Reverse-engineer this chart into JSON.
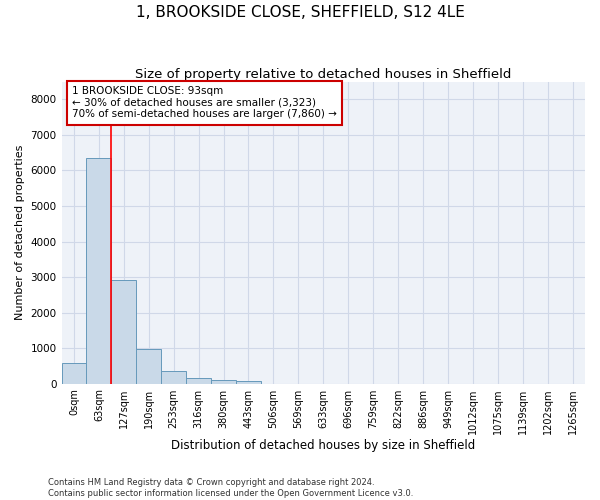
{
  "title": "1, BROOKSIDE CLOSE, SHEFFIELD, S12 4LE",
  "subtitle": "Size of property relative to detached houses in Sheffield",
  "xlabel": "Distribution of detached houses by size in Sheffield",
  "ylabel": "Number of detached properties",
  "categories": [
    "0sqm",
    "63sqm",
    "127sqm",
    "190sqm",
    "253sqm",
    "316sqm",
    "380sqm",
    "443sqm",
    "506sqm",
    "569sqm",
    "633sqm",
    "696sqm",
    "759sqm",
    "822sqm",
    "886sqm",
    "949sqm",
    "1012sqm",
    "1075sqm",
    "1139sqm",
    "1202sqm",
    "1265sqm"
  ],
  "bar_values": [
    580,
    6350,
    2920,
    970,
    360,
    160,
    100,
    65,
    0,
    0,
    0,
    0,
    0,
    0,
    0,
    0,
    0,
    0,
    0,
    0,
    0
  ],
  "bar_color": "#c9d9e8",
  "bar_edge_color": "#6699bb",
  "property_line_x": 1.47,
  "annotation_text": "1 BROOKSIDE CLOSE: 93sqm\n← 30% of detached houses are smaller (3,323)\n70% of semi-detached houses are larger (7,860) →",
  "annotation_box_color": "#cc0000",
  "ylim": [
    0,
    8500
  ],
  "yticks": [
    0,
    1000,
    2000,
    3000,
    4000,
    5000,
    6000,
    7000,
    8000
  ],
  "grid_color": "#d0d8e8",
  "bg_color": "#eef2f8",
  "footer_line1": "Contains HM Land Registry data © Crown copyright and database right 2024.",
  "footer_line2": "Contains public sector information licensed under the Open Government Licence v3.0.",
  "title_fontsize": 11,
  "subtitle_fontsize": 9.5,
  "tick_fontsize": 7,
  "ylabel_fontsize": 8,
  "xlabel_fontsize": 8.5,
  "annotation_fontsize": 7.5
}
